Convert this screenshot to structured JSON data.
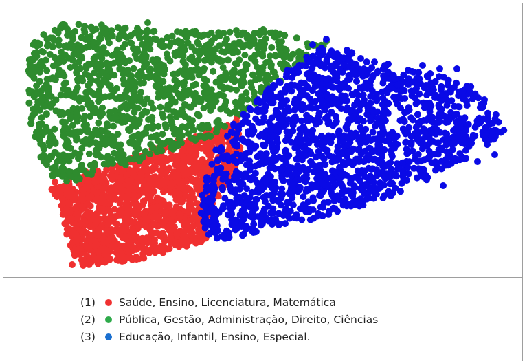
{
  "chart_data": {
    "type": "scatter",
    "title": "",
    "xlabel": "",
    "ylabel": "",
    "grid": false,
    "axes_visible": false,
    "legend_position": "bottom",
    "series": [
      {
        "id": "1",
        "name": "Saúde, Ensino, Licenciatura, Matemática",
        "marker_label": "(1)",
        "color": "#f03030",
        "region": "lower-left wedge",
        "approx_points": 1400
      },
      {
        "id": "2",
        "name": "Pública, Gestão, Administração, Direito, Ciências",
        "marker_label": "(2)",
        "color": "#2e8b2e",
        "region": "upper-left",
        "approx_points": 1200
      },
      {
        "id": "3",
        "name": "Educação, Infantil, Ensino, Especial.",
        "marker_label": "(3)",
        "color": "#0a0ae6",
        "region": "right",
        "approx_points": 1600
      }
    ]
  },
  "legend": {
    "items": [
      {
        "num": "(1)",
        "color": "#f03030",
        "label": "Saúde, Ensino, Licenciatura, Matemática"
      },
      {
        "num": "(2)",
        "color": "#2eaa4a",
        "label": "Pública, Gestão, Administração, Direito, Ciências"
      },
      {
        "num": "(3)",
        "color": "#1a6fd0",
        "label": "Educação, Infantil, Ensino, Especial."
      }
    ]
  }
}
